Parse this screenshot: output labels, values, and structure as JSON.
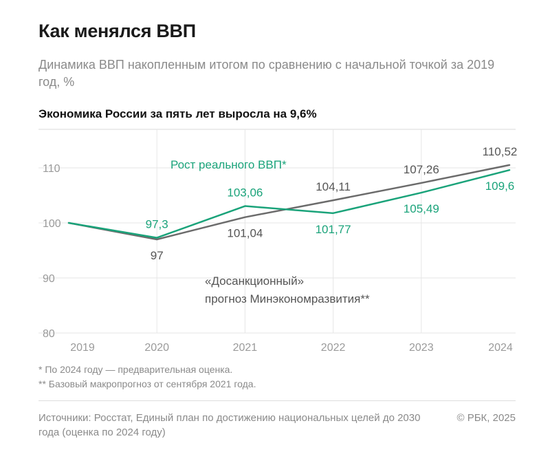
{
  "header": {
    "title": "Как менялся ВВП",
    "subtitle": "Динамика ВВП накопленным итогом по сравнению с начальной точкой за 2019 год, %",
    "headline": "Экономика России за пять лет выросла на 9,6%"
  },
  "footnotes": [
    "* По 2024 году — предварительная оценка.",
    "** Базовый макропрогноз от сентября 2021 года."
  ],
  "sources": "Источники: Росстат, Единый план по достижению национальных целей до 2030 года (оценка по 2024 году)",
  "copyright": "© РБК, 2025",
  "colors": {
    "green": "#1aa37a",
    "gray": "#6b6b6b",
    "grid": "#e6e6e6",
    "text_muted": "#8a8a8a"
  },
  "chart_data": {
    "type": "line",
    "x": [
      "2019",
      "2020",
      "2021",
      "2022",
      "2023",
      "2024"
    ],
    "y_ticks": [
      80,
      90,
      100,
      110
    ],
    "ylim": [
      80,
      117
    ],
    "grid": true,
    "series": [
      {
        "name_lines": [
          "«Досанкционный»",
          "прогноз Минэкономразвития**"
        ],
        "color": "#6b6b6b",
        "values": [
          100,
          97,
          101.04,
          104.11,
          107.26,
          110.52
        ],
        "labels": [
          "",
          "97",
          "101,04",
          "104,11",
          "107,26",
          "110,52"
        ],
        "label_side": [
          "",
          "below",
          "below",
          "above",
          "above",
          "above"
        ]
      },
      {
        "name_lines": [
          "Рост реального ВВП*"
        ],
        "color": "#1aa37a",
        "values": [
          100,
          97.3,
          103.06,
          101.77,
          105.49,
          109.6
        ],
        "labels": [
          "",
          "97,3",
          "103,06",
          "101,77",
          "105,49",
          "109,6"
        ],
        "label_side": [
          "",
          "above",
          "above",
          "below",
          "below",
          "below"
        ]
      }
    ]
  }
}
